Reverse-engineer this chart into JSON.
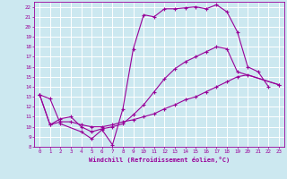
{
  "xlabel": "Windchill (Refroidissement éolien,°C)",
  "bg_color": "#cce8f0",
  "grid_color": "#ffffff",
  "line_color": "#990099",
  "xlim": [
    -0.5,
    23.5
  ],
  "ylim": [
    8,
    22.5
  ],
  "xticks": [
    0,
    1,
    2,
    3,
    4,
    5,
    6,
    7,
    8,
    9,
    10,
    11,
    12,
    13,
    14,
    15,
    16,
    17,
    18,
    19,
    20,
    21,
    22,
    23
  ],
  "yticks": [
    8,
    9,
    10,
    11,
    12,
    13,
    14,
    15,
    16,
    17,
    18,
    19,
    20,
    21,
    22
  ],
  "curve1_x": [
    0,
    1,
    2,
    4,
    5,
    6,
    7,
    8,
    9,
    10,
    11,
    12,
    13,
    14,
    15,
    16,
    17,
    18,
    19,
    20,
    21,
    22
  ],
  "curve1_y": [
    13.2,
    12.8,
    10.3,
    9.5,
    8.8,
    9.7,
    8.2,
    11.8,
    17.8,
    21.2,
    21.0,
    21.8,
    21.8,
    21.9,
    22.0,
    21.8,
    22.2,
    21.5,
    19.5,
    16.0,
    15.5,
    14.0
  ],
  "curve2_x": [
    0,
    1,
    2,
    3,
    4,
    5,
    6,
    7,
    8,
    9,
    10,
    11,
    12,
    13,
    14,
    15,
    16,
    17,
    18,
    19,
    20,
    23
  ],
  "curve2_y": [
    13.2,
    10.2,
    10.5,
    10.5,
    10.2,
    10.0,
    10.0,
    10.2,
    10.5,
    10.7,
    11.0,
    11.3,
    11.8,
    12.2,
    12.7,
    13.0,
    13.5,
    14.0,
    14.5,
    15.0,
    15.2,
    14.2
  ],
  "curve3_x": [
    0,
    1,
    2,
    3,
    4,
    5,
    6,
    7,
    8,
    9,
    10,
    11,
    12,
    13,
    14,
    15,
    16,
    17,
    18,
    19,
    23
  ],
  "curve3_y": [
    13.2,
    10.2,
    10.8,
    11.0,
    10.0,
    9.5,
    9.8,
    10.0,
    10.3,
    11.2,
    12.2,
    13.5,
    14.8,
    15.8,
    16.5,
    17.0,
    17.5,
    18.0,
    17.8,
    15.5,
    14.2
  ]
}
